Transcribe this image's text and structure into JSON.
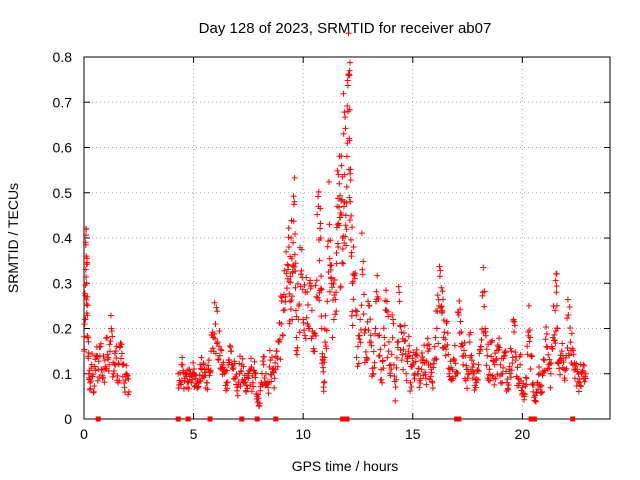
{
  "chart_data": {
    "type": "scatter",
    "title": "Day 128 of 2023, SRMTID for receiver ab07",
    "xlabel": "GPS time / hours",
    "ylabel": "SRMTID / TECUs",
    "xlim": [
      0,
      24
    ],
    "ylim": [
      0,
      0.8
    ],
    "xticks": [
      0,
      5,
      10,
      15,
      20
    ],
    "yticks": [
      0,
      0.1,
      0.2,
      0.3,
      0.4,
      0.5,
      0.6,
      0.7,
      0.8
    ],
    "grid": true,
    "marker": "+",
    "color": "#ff0000",
    "series": [
      {
        "name": "SRMTID",
        "points": [
          [
            0.0,
            0.15
          ],
          [
            0.05,
            0.22
          ],
          [
            0.08,
            0.33
          ],
          [
            0.1,
            0.36
          ],
          [
            0.12,
            0.3
          ],
          [
            0.15,
            0.27
          ],
          [
            0.18,
            0.18
          ],
          [
            0.22,
            0.1
          ],
          [
            0.28,
            0.08
          ],
          [
            0.35,
            0.12
          ],
          [
            0.45,
            0.06
          ],
          [
            0.55,
            0.14
          ],
          [
            0.65,
            0.11
          ],
          [
            0.75,
            0.16
          ],
          [
            0.85,
            0.09
          ],
          [
            0.95,
            0.13
          ],
          [
            1.05,
            0.18
          ],
          [
            1.15,
            0.12
          ],
          [
            1.25,
            0.2
          ],
          [
            1.35,
            0.1
          ],
          [
            1.45,
            0.15
          ],
          [
            1.55,
            0.08
          ],
          [
            1.65,
            0.16
          ],
          [
            1.75,
            0.12
          ],
          [
            1.85,
            0.07
          ],
          [
            1.95,
            0.1
          ],
          [
            2.05,
            0.06
          ],
          [
            4.3,
            0.1
          ],
          [
            4.4,
            0.08
          ],
          [
            4.5,
            0.12
          ],
          [
            4.6,
            0.09
          ],
          [
            4.7,
            0.07
          ],
          [
            4.8,
            0.11
          ],
          [
            4.9,
            0.08
          ],
          [
            5.0,
            0.1
          ],
          [
            5.1,
            0.09
          ],
          [
            5.2,
            0.07
          ],
          [
            5.3,
            0.12
          ],
          [
            5.4,
            0.09
          ],
          [
            5.5,
            0.11
          ],
          [
            5.6,
            0.08
          ],
          [
            5.7,
            0.13
          ],
          [
            5.8,
            0.15
          ],
          [
            5.9,
            0.18
          ],
          [
            6.0,
            0.21
          ],
          [
            6.1,
            0.17
          ],
          [
            6.2,
            0.14
          ],
          [
            6.3,
            0.12
          ],
          [
            6.4,
            0.1
          ],
          [
            6.5,
            0.08
          ],
          [
            6.6,
            0.13
          ],
          [
            6.7,
            0.15
          ],
          [
            6.8,
            0.11
          ],
          [
            6.9,
            0.09
          ],
          [
            7.0,
            0.07
          ],
          [
            7.1,
            0.1
          ],
          [
            7.2,
            0.12
          ],
          [
            7.3,
            0.08
          ],
          [
            7.4,
            0.06
          ],
          [
            7.5,
            0.09
          ],
          [
            7.6,
            0.11
          ],
          [
            7.7,
            0.08
          ],
          [
            7.8,
            0.1
          ],
          [
            7.9,
            0.05
          ],
          [
            8.0,
            0.03
          ],
          [
            8.1,
            0.08
          ],
          [
            8.2,
            0.12
          ],
          [
            8.3,
            0.1
          ],
          [
            8.4,
            0.07
          ],
          [
            8.5,
            0.13
          ],
          [
            8.6,
            0.11
          ],
          [
            8.7,
            0.09
          ],
          [
            8.8,
            0.15
          ],
          [
            8.9,
            0.17
          ],
          [
            9.0,
            0.21
          ],
          [
            9.1,
            0.24
          ],
          [
            9.2,
            0.27
          ],
          [
            9.3,
            0.31
          ],
          [
            9.35,
            0.38
          ],
          [
            9.4,
            0.26
          ],
          [
            9.45,
            0.4
          ],
          [
            9.5,
            0.22
          ],
          [
            9.55,
            0.34
          ],
          [
            9.6,
            0.48
          ],
          [
            9.65,
            0.29
          ],
          [
            9.7,
            0.18
          ],
          [
            9.8,
            0.25
          ],
          [
            9.9,
            0.32
          ],
          [
            10.0,
            0.22
          ],
          [
            10.1,
            0.28
          ],
          [
            10.2,
            0.21
          ],
          [
            10.3,
            0.3
          ],
          [
            10.4,
            0.24
          ],
          [
            10.5,
            0.19
          ],
          [
            10.6,
            0.27
          ],
          [
            10.7,
            0.47
          ],
          [
            10.75,
            0.35
          ],
          [
            10.8,
            0.4
          ],
          [
            10.85,
            0.2
          ],
          [
            10.9,
            0.13
          ],
          [
            10.95,
            0.08
          ],
          [
            11.0,
            0.17
          ],
          [
            11.1,
            0.26
          ],
          [
            11.2,
            0.43
          ],
          [
            11.25,
            0.34
          ],
          [
            11.3,
            0.3
          ],
          [
            11.4,
            0.22
          ],
          [
            11.5,
            0.28
          ],
          [
            11.55,
            0.47
          ],
          [
            11.6,
            0.38
          ],
          [
            11.65,
            0.52
          ],
          [
            11.7,
            0.29
          ],
          [
            11.75,
            0.56
          ],
          [
            11.8,
            0.4
          ],
          [
            11.85,
            0.63
          ],
          [
            11.9,
            0.54
          ],
          [
            11.95,
            0.45
          ],
          [
            12.0,
            0.58
          ],
          [
            12.05,
            0.68
          ],
          [
            12.1,
            0.62
          ],
          [
            12.12,
            0.77
          ],
          [
            12.15,
            0.48
          ],
          [
            12.2,
            0.36
          ],
          [
            12.25,
            0.3
          ],
          [
            12.3,
            0.38
          ],
          [
            12.4,
            0.24
          ],
          [
            12.5,
            0.16
          ],
          [
            12.6,
            0.22
          ],
          [
            12.7,
            0.33
          ],
          [
            12.8,
            0.19
          ],
          [
            12.9,
            0.13
          ],
          [
            13.0,
            0.25
          ],
          [
            13.1,
            0.17
          ],
          [
            13.2,
            0.1
          ],
          [
            13.3,
            0.2
          ],
          [
            13.4,
            0.27
          ],
          [
            13.5,
            0.14
          ],
          [
            13.6,
            0.08
          ],
          [
            13.7,
            0.18
          ],
          [
            13.8,
            0.24
          ],
          [
            13.9,
            0.15
          ],
          [
            14.0,
            0.12
          ],
          [
            14.1,
            0.22
          ],
          [
            14.2,
            0.04
          ],
          [
            14.3,
            0.17
          ],
          [
            14.4,
            0.26
          ],
          [
            14.5,
            0.13
          ],
          [
            14.6,
            0.19
          ],
          [
            14.7,
            0.1
          ],
          [
            14.8,
            0.15
          ],
          [
            14.9,
            0.08
          ],
          [
            15.0,
            0.12
          ],
          [
            15.1,
            0.1
          ],
          [
            15.2,
            0.14
          ],
          [
            15.3,
            0.07
          ],
          [
            15.4,
            0.11
          ],
          [
            15.5,
            0.13
          ],
          [
            15.6,
            0.09
          ],
          [
            15.7,
            0.15
          ],
          [
            15.8,
            0.12
          ],
          [
            15.9,
            0.08
          ],
          [
            16.0,
            0.16
          ],
          [
            16.1,
            0.2
          ],
          [
            16.2,
            0.25
          ],
          [
            16.3,
            0.29
          ],
          [
            16.35,
            0.24
          ],
          [
            16.4,
            0.18
          ],
          [
            16.5,
            0.14
          ],
          [
            16.6,
            0.19
          ],
          [
            16.7,
            0.11
          ],
          [
            16.8,
            0.09
          ],
          [
            16.9,
            0.13
          ],
          [
            17.0,
            0.1
          ],
          [
            17.1,
            0.23
          ],
          [
            17.2,
            0.16
          ],
          [
            17.3,
            0.12
          ],
          [
            17.4,
            0.14
          ],
          [
            17.5,
            0.09
          ],
          [
            17.6,
            0.17
          ],
          [
            17.7,
            0.13
          ],
          [
            17.8,
            0.1
          ],
          [
            17.9,
            0.08
          ],
          [
            18.0,
            0.12
          ],
          [
            18.1,
            0.16
          ],
          [
            18.2,
            0.28
          ],
          [
            18.3,
            0.2
          ],
          [
            18.4,
            0.14
          ],
          [
            18.5,
            0.11
          ],
          [
            18.6,
            0.17
          ],
          [
            18.7,
            0.09
          ],
          [
            18.8,
            0.13
          ],
          [
            18.9,
            0.16
          ],
          [
            19.0,
            0.12
          ],
          [
            19.1,
            0.1
          ],
          [
            19.2,
            0.14
          ],
          [
            19.3,
            0.08
          ],
          [
            19.4,
            0.11
          ],
          [
            19.5,
            0.15
          ],
          [
            19.6,
            0.22
          ],
          [
            19.7,
            0.13
          ],
          [
            19.8,
            0.09
          ],
          [
            19.9,
            0.12
          ],
          [
            20.0,
            0.07
          ],
          [
            20.1,
            0.05
          ],
          [
            20.2,
            0.09
          ],
          [
            20.3,
            0.25
          ],
          [
            20.4,
            0.14
          ],
          [
            20.5,
            0.06
          ],
          [
            20.6,
            0.04
          ],
          [
            20.7,
            0.08
          ],
          [
            20.8,
            0.1
          ],
          [
            20.9,
            0.06
          ],
          [
            21.0,
            0.13
          ],
          [
            21.1,
            0.16
          ],
          [
            21.2,
            0.12
          ],
          [
            21.3,
            0.1
          ],
          [
            21.4,
            0.18
          ],
          [
            21.5,
            0.24
          ],
          [
            21.55,
            0.28
          ],
          [
            21.6,
            0.2
          ],
          [
            21.7,
            0.13
          ],
          [
            21.8,
            0.15
          ],
          [
            21.9,
            0.11
          ],
          [
            22.0,
            0.14
          ],
          [
            22.1,
            0.23
          ],
          [
            22.2,
            0.17
          ],
          [
            22.3,
            0.12
          ],
          [
            22.4,
            0.09
          ],
          [
            22.5,
            0.11
          ],
          [
            22.6,
            0.08
          ],
          [
            22.7,
            0.1
          ],
          [
            22.8,
            0.09
          ],
          [
            22.9,
            0.1
          ]
        ]
      }
    ],
    "zero_points_x": [
      0.65,
      4.3,
      4.75,
      5.75,
      7.2,
      7.9,
      8.75,
      11.8,
      12.0,
      17.0,
      17.1,
      20.4,
      20.5,
      20.55,
      22.3
    ]
  }
}
